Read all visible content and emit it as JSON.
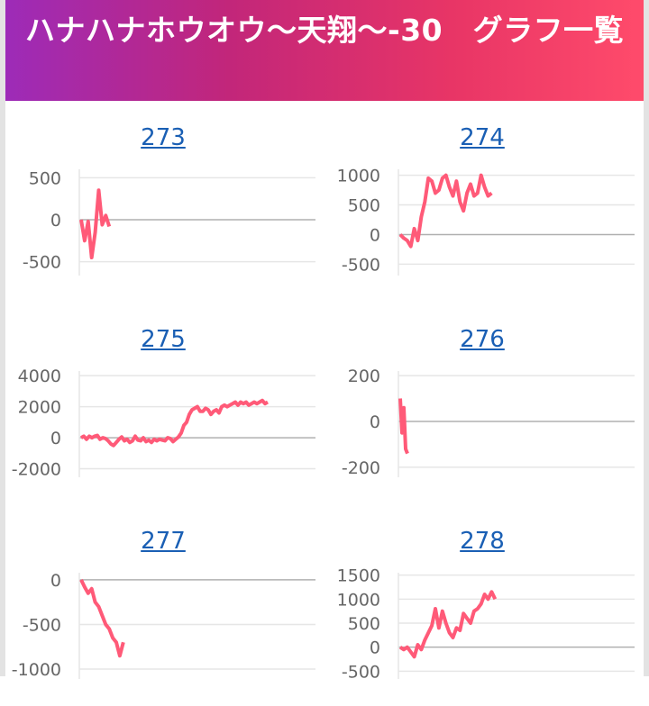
{
  "header": {
    "title": "ハナハナホウオウ〜天翔〜-30　グラフ一覧"
  },
  "charts": [
    {
      "id": "273",
      "ticks": [
        "500",
        "0",
        "-500"
      ],
      "tickVals": [
        500,
        0,
        -500
      ],
      "ylim": [
        -600,
        600
      ],
      "values": [
        0,
        -250,
        -20,
        -450,
        -150,
        350,
        -60,
        50,
        -80
      ]
    },
    {
      "id": "274",
      "ticks": [
        "1000",
        "500",
        "0",
        "-500"
      ],
      "tickVals": [
        1000,
        500,
        0,
        -500
      ],
      "ylim": [
        -600,
        1100
      ],
      "values": [
        0,
        -60,
        -100,
        -200,
        100,
        -100,
        300,
        550,
        950,
        900,
        700,
        750,
        950,
        1000,
        800,
        650,
        900,
        550,
        400,
        700,
        850,
        650,
        700,
        1000,
        800,
        650,
        700
      ]
    },
    {
      "id": "275",
      "ticks": [
        "4000",
        "2000",
        "0",
        "-2000"
      ],
      "tickVals": [
        4000,
        2000,
        0,
        -2000
      ],
      "ylim": [
        -2200,
        4300
      ],
      "values": [
        0,
        100,
        -100,
        100,
        0,
        100,
        150,
        -100,
        0,
        -50,
        -200,
        -400,
        -500,
        -300,
        -100,
        50,
        -200,
        -100,
        -300,
        -200,
        100,
        -150,
        -200,
        0,
        -250,
        -150,
        -300,
        -100,
        -200,
        -100,
        -150,
        -200,
        0,
        -50,
        -250,
        -100,
        50,
        300,
        800,
        1000,
        1500,
        1800,
        1900,
        2000,
        1700,
        1700,
        1900,
        1800,
        1500,
        1700,
        1800,
        1600,
        2000,
        2100,
        2000,
        2100,
        2200,
        2300,
        2100,
        2300,
        2200,
        2300,
        2100,
        2200,
        2300,
        2200,
        2300,
        2400,
        2200,
        2300
      ]
    },
    {
      "id": "276",
      "ticks": [
        "200",
        "0",
        "-200"
      ],
      "tickVals": [
        200,
        0,
        -200
      ],
      "ylim": [
        -220,
        220
      ],
      "values": [
        100,
        -50,
        60,
        -120,
        -140
      ]
    },
    {
      "id": "277",
      "ticks": [
        "0",
        "-500",
        "-1000"
      ],
      "tickVals": [
        0,
        -500,
        -1000
      ],
      "ylim": [
        -1050,
        80
      ],
      "values": [
        0,
        -80,
        -150,
        -100,
        -250,
        -300,
        -400,
        -500,
        -550,
        -650,
        -700,
        -850,
        -700
      ]
    },
    {
      "id": "278",
      "ticks": [
        "1500",
        "1000",
        "500",
        "0",
        "-500"
      ],
      "tickVals": [
        1500,
        1000,
        500,
        0,
        -500
      ],
      "ylim": [
        -550,
        1550
      ],
      "values": [
        0,
        -50,
        0,
        -100,
        -200,
        50,
        -50,
        150,
        300,
        450,
        800,
        400,
        750,
        500,
        300,
        200,
        400,
        350,
        700,
        600,
        500,
        750,
        800,
        900,
        1100,
        1000,
        1150,
        1000
      ]
    }
  ],
  "colors": {
    "line": "#ff5a78",
    "axis": "#bdbdbd",
    "tick": "#666666",
    "link": "#1a5fb4"
  }
}
